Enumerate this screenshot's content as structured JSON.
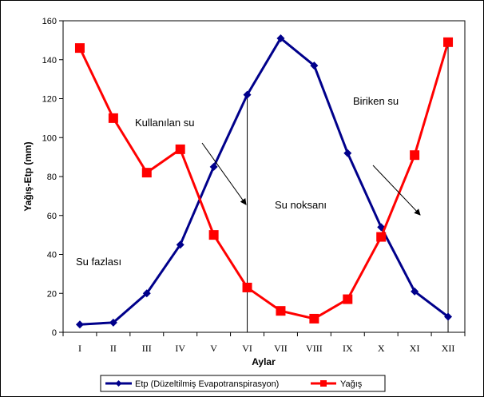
{
  "chart_data": {
    "type": "line",
    "categories": [
      "I",
      "II",
      "III",
      "IV",
      "V",
      "VI",
      "VII",
      "VIII",
      "IX",
      "X",
      "XI",
      "XII"
    ],
    "series": [
      {
        "name": "Etp (Düzeltilmiş Evapotranspirasyon)",
        "values": [
          4,
          5,
          20,
          45,
          85,
          122,
          151,
          137,
          92,
          54,
          21,
          8
        ],
        "color": "#00008b",
        "marker": "diamond"
      },
      {
        "name": "Yağış",
        "values": [
          146,
          110,
          82,
          94,
          50,
          23,
          11,
          7,
          17,
          49,
          91,
          149
        ],
        "color": "#ff0000",
        "marker": "square"
      }
    ],
    "title": "",
    "xlabel": "Aylar",
    "ylabel": "Yağış-Etp (mm)",
    "ylim": [
      0,
      160
    ],
    "yticks": [
      0,
      20,
      40,
      60,
      80,
      100,
      120,
      140,
      160
    ],
    "grid": false,
    "legend_position": "bottom",
    "annotations": [
      "Kullanılan su",
      "Biriken su",
      "Su noksanı",
      "Su fazlası"
    ]
  }
}
